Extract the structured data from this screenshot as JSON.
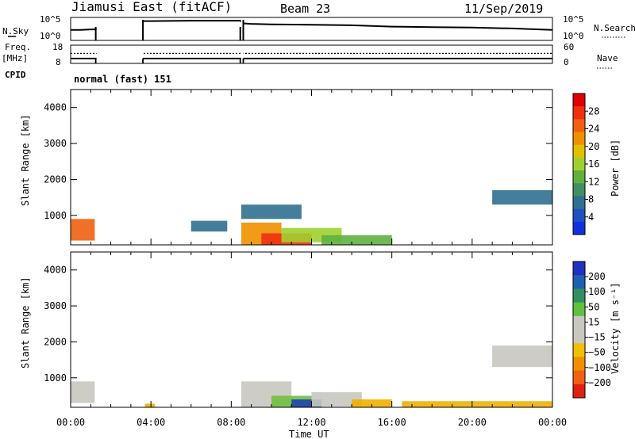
{
  "header": {
    "title": "Jiamusi East (fitACF)",
    "beam": "Beam 23",
    "date": "11/Sep/2019"
  },
  "left_labels": {
    "nsky": "N.Sky",
    "freq_top": "Freq.",
    "freq_unit": "[MHz]",
    "cpid": "CPID"
  },
  "right_labels": {
    "nsearch": "N.Search",
    "nave": "Nave"
  },
  "cpid_text": "normal (fast) 151",
  "strip_ticks": {
    "noise_left_top": "10^5",
    "noise_left_bot": "10^0",
    "noise_right_top": "10^5",
    "noise_right_bot": "10^0",
    "freq_left_top": "18",
    "freq_left_bot": "8",
    "nave_right_top": "60",
    "nave_right_bot": "0"
  },
  "power_colorbar": {
    "label": "Power [dB]",
    "ticks": [
      "28",
      "24",
      "20",
      "16",
      "12",
      "8",
      "4"
    ],
    "colors": [
      "#e00000",
      "#f03010",
      "#f06010",
      "#f09000",
      "#e0c000",
      "#a0d030",
      "#60b040",
      "#409060",
      "#307090",
      "#2050c0",
      "#1030e0"
    ]
  },
  "velocity_colorbar": {
    "label": "Velocity [m s⁻¹]",
    "ticks": [
      "200",
      "100",
      "50",
      "15",
      "−15",
      "−50",
      "−100",
      "−200"
    ],
    "colors": [
      "#2030c0",
      "#2060b0",
      "#309060",
      "#60c040",
      "#c8c8c0",
      "#c8c8c0",
      "#f0c000",
      "#f09000",
      "#f06010",
      "#e02010"
    ]
  },
  "chart_data": [
    {
      "type": "line",
      "name": "noise",
      "x": [
        0.0,
        0.5,
        1.0,
        1.25,
        3.6,
        4.0,
        6.0,
        8.0,
        8.45,
        8.6,
        9.0,
        10.0,
        12.0,
        14.0,
        16.0,
        18.0,
        20.0,
        22.0,
        24.0
      ],
      "series": [
        {
          "name": "N.Sky",
          "values": [
            2.3,
            2.3,
            2.4,
            2.4,
            4.2,
            4.2,
            4.3,
            4.3,
            4.3,
            3.7,
            3.6,
            3.5,
            3.4,
            3.3,
            3.0,
            2.9,
            2.8,
            2.6,
            2.3
          ]
        }
      ]
    },
    {
      "type": "line",
      "name": "freq_nave",
      "x": [
        0.0,
        1.25,
        3.6,
        8.45,
        8.6,
        24.0
      ],
      "series": [
        {
          "name": "Freq",
          "values": [
            10.7,
            10.7,
            10.7,
            10.7,
            10.7,
            10.7
          ]
        },
        {
          "name": "Nave",
          "values": [
            33,
            33,
            33,
            33,
            33,
            33
          ]
        }
      ]
    },
    {
      "type": "heatmap",
      "name": "power",
      "xlabel": "Time UT",
      "ylabel": "Slant Range [km]",
      "xlim": [
        0,
        24
      ],
      "ylim": [
        180,
        4500
      ],
      "x_ticks": [
        "00:00",
        "04:00",
        "08:00",
        "12:00",
        "16:00",
        "20:00",
        "00:00"
      ],
      "y_ticks": [
        "1000",
        "2000",
        "3000",
        "4000"
      ],
      "y_tick_values": [
        1000,
        2000,
        3000,
        4000
      ],
      "regions": [
        {
          "t0": 0.0,
          "t1": 1.2,
          "r0": 300,
          "r1": 900,
          "value": 24
        },
        {
          "t0": 8.5,
          "t1": 10.5,
          "r0": 180,
          "r1": 800,
          "value": 22
        },
        {
          "t0": 9.5,
          "t1": 12.0,
          "r0": 180,
          "r1": 500,
          "value": 26
        },
        {
          "t0": 10.5,
          "t1": 13.5,
          "r0": 250,
          "r1": 650,
          "value": 16
        },
        {
          "t0": 12.5,
          "t1": 16.0,
          "r0": 180,
          "r1": 450,
          "value": 12
        },
        {
          "t0": 8.5,
          "t1": 11.5,
          "r0": 900,
          "r1": 1300,
          "value": 6
        },
        {
          "t0": 21.0,
          "t1": 24.0,
          "r0": 1300,
          "r1": 1700,
          "value": 5
        },
        {
          "t0": 6.0,
          "t1": 7.8,
          "r0": 550,
          "r1": 850,
          "value": 5
        }
      ]
    },
    {
      "type": "heatmap",
      "name": "velocity",
      "xlabel": "Time UT",
      "ylabel": "Slant Range [km]",
      "xlim": [
        0,
        24
      ],
      "ylim": [
        180,
        4500
      ],
      "x_ticks": [
        "00:00",
        "04:00",
        "08:00",
        "12:00",
        "16:00",
        "20:00",
        "00:00"
      ],
      "y_ticks": [
        "1000",
        "2000",
        "3000",
        "4000"
      ],
      "y_tick_values": [
        1000,
        2000,
        3000,
        4000
      ],
      "regions": [
        {
          "t0": 0.0,
          "t1": 1.2,
          "r0": 300,
          "r1": 900,
          "value": 0
        },
        {
          "t0": 8.5,
          "t1": 11.0,
          "r0": 180,
          "r1": 900,
          "value": 0
        },
        {
          "t0": 10.0,
          "t1": 12.0,
          "r0": 180,
          "r1": 500,
          "value": 30
        },
        {
          "t0": 11.0,
          "t1": 12.5,
          "r0": 180,
          "r1": 400,
          "value": 150
        },
        {
          "t0": 12.0,
          "t1": 14.5,
          "r0": 200,
          "r1": 600,
          "value": 0
        },
        {
          "t0": 14.0,
          "t1": 16.0,
          "r0": 180,
          "r1": 400,
          "value": -40
        },
        {
          "t0": 3.7,
          "t1": 4.2,
          "r0": 180,
          "r1": 280,
          "value": -40
        },
        {
          "t0": 21.0,
          "t1": 24.0,
          "r0": 1300,
          "r1": 1900,
          "value": 0
        },
        {
          "t0": 16.5,
          "t1": 24.0,
          "r0": 180,
          "r1": 350,
          "value": -40
        }
      ]
    }
  ]
}
